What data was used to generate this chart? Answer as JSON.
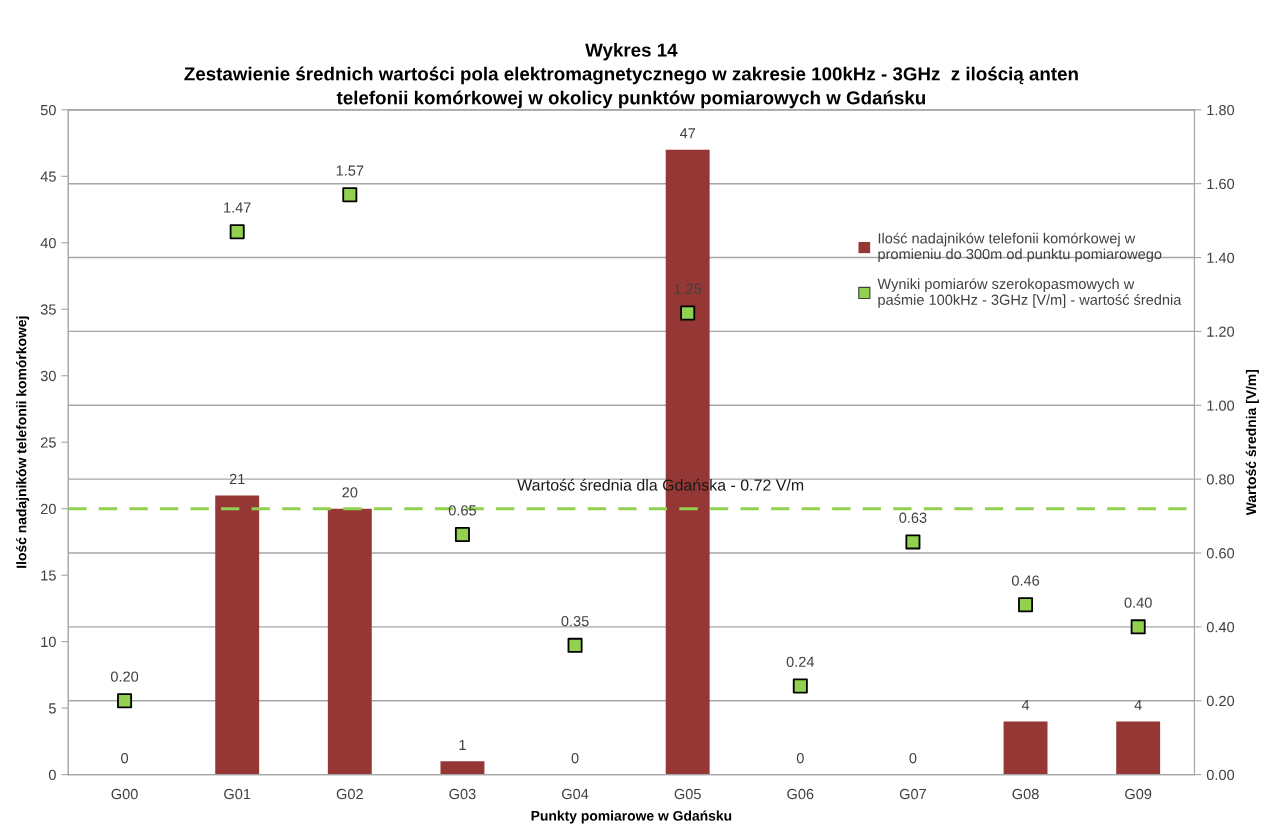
{
  "chart_data": {
    "type": "bar",
    "title": "Wykres 14\nZestawienie średnich wartości pola elektromagnetycznego w zakresie 100kHz - 3GHz  z ilością anten\ntelefonii komórkowej w okolicy punktów pomiarowych w Gdańsku",
    "xlabel": "Punkty pomiarowe w Gdańsku",
    "ylabel": "Ilość nadajników telefonii komórkowej",
    "y2label": "Wartość średnia [V/m]",
    "categories": [
      "G00",
      "G01",
      "G02",
      "G03",
      "G04",
      "G05",
      "G06",
      "G07",
      "G08",
      "G09"
    ],
    "series": [
      {
        "name": "Ilość nadajników telefonii komórkowej w\npromieniu do 300m od punktu pomiarowego",
        "color": "#953735",
        "values": [
          0,
          21,
          20,
          1,
          0,
          47,
          0,
          0,
          4,
          4
        ],
        "value_labels": [
          "0",
          "21",
          "20",
          "1",
          "0",
          "47",
          "0",
          "0",
          "4",
          "4"
        ]
      },
      {
        "name": "Wyniki pomiarów szerokopasmowych w\npaśmie 100kHz - 3GHz [V/m] - wartość średnia",
        "type": "scatter",
        "axis": "y2",
        "color": "#92d050",
        "marker": "square",
        "values": [
          0.2,
          1.47,
          1.57,
          0.65,
          0.35,
          1.25,
          0.24,
          0.63,
          0.46,
          0.4
        ],
        "value_labels": [
          "0.20",
          "1.47",
          "1.57",
          "0.65",
          "0.35",
          "1.25",
          "0.24",
          "0.63",
          "0.46",
          "0.40"
        ]
      }
    ],
    "ylim": [
      0,
      50
    ],
    "yticks": [
      0,
      5,
      10,
      15,
      20,
      25,
      30,
      35,
      40,
      45,
      50
    ],
    "y2lim": [
      0,
      1.8
    ],
    "y2ticks": [
      {
        "value": 0,
        "label": "0.00"
      },
      {
        "value": 0.2,
        "label": "0.20"
      },
      {
        "value": 0.4,
        "label": "0.40"
      },
      {
        "value": 0.6,
        "label": "0.60"
      },
      {
        "value": 0.8,
        "label": "0.80"
      },
      {
        "value": 1.0,
        "label": "1.00"
      },
      {
        "value": 1.2,
        "label": "1.20"
      },
      {
        "value": 1.4,
        "label": "1.40"
      },
      {
        "value": 1.6,
        "label": "1.60"
      },
      {
        "value": 1.8,
        "label": "1.80"
      }
    ],
    "ref_lines": [
      {
        "axis": "y2",
        "value": 0.72,
        "label": "Wartość średnia dla Gdańska - 0.72 V/m",
        "color": "#92d050",
        "line_style": "dashed"
      }
    ],
    "grid": true,
    "legend": "top right"
  }
}
